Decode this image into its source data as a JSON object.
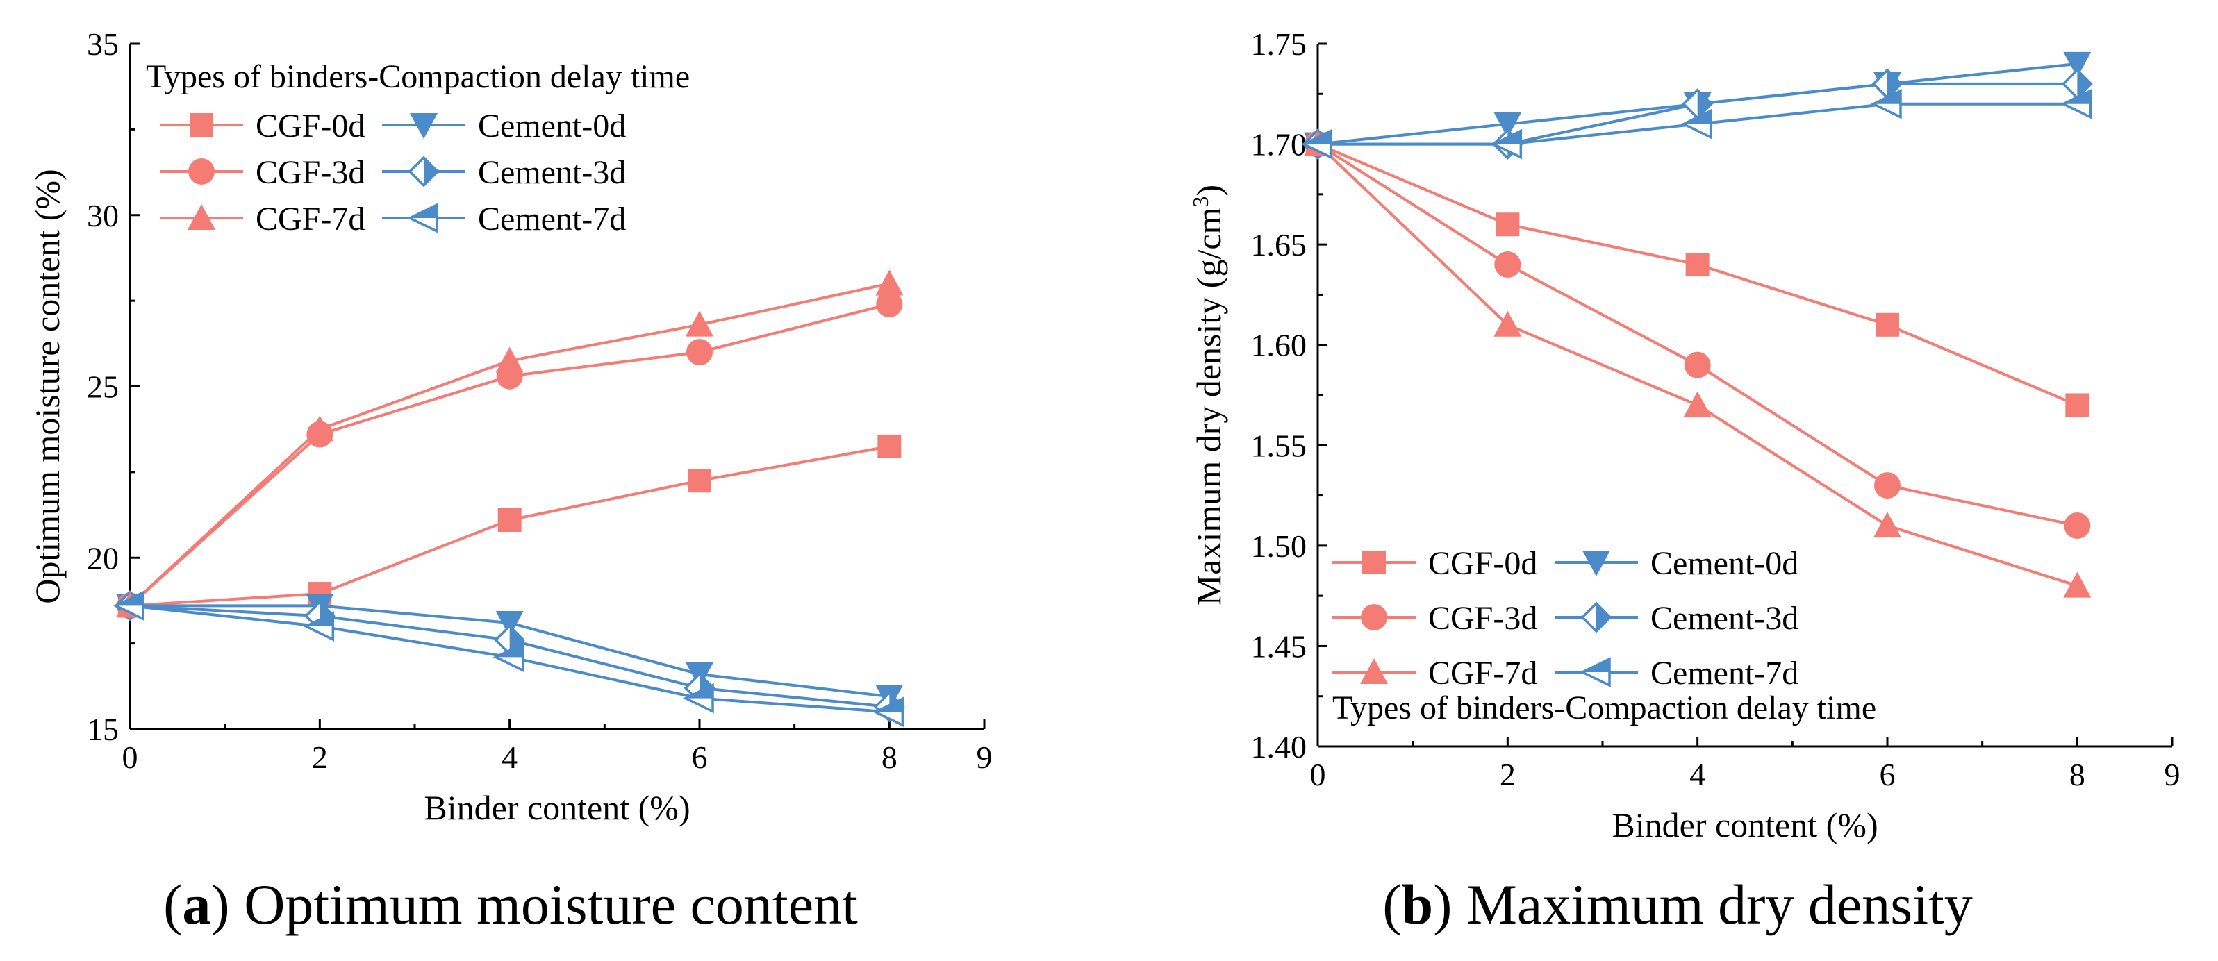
{
  "colors": {
    "cgf": "#F47C74",
    "cement": "#4C8BC9"
  },
  "captions": [
    {
      "letter": "a",
      "text": "Optimum moisture content"
    },
    {
      "letter": "b",
      "text": "Maximum dry density"
    }
  ],
  "chart_data": [
    {
      "type": "line",
      "title": "",
      "xlabel": "Binder content (%)",
      "ylabel": "Optimum moisture content (%)",
      "xlim": [
        0,
        9
      ],
      "ylim": [
        15,
        35
      ],
      "xticks": [
        0,
        2,
        4,
        6,
        8,
        9
      ],
      "yticks": [
        15,
        20,
        25,
        30,
        35
      ],
      "x": [
        0,
        2,
        4,
        6,
        8
      ],
      "legend_title": "Types of binders-Compaction delay time",
      "legend_position": "top-left",
      "series": [
        {
          "name": "CGF-0d",
          "color": "cgf",
          "marker": "square",
          "values": [
            18.6,
            18.95,
            21.1,
            22.25,
            23.25
          ]
        },
        {
          "name": "Cement-0d",
          "color": "cement",
          "marker": "triangle-down",
          "values": [
            18.6,
            18.6,
            18.1,
            16.6,
            15.95
          ]
        },
        {
          "name": "CGF-3d",
          "color": "cgf",
          "marker": "circle",
          "values": [
            18.6,
            23.6,
            25.3,
            26.0,
            27.4
          ]
        },
        {
          "name": "Cement-3d",
          "color": "cement",
          "marker": "diamond-half",
          "values": [
            18.6,
            18.3,
            17.6,
            16.2,
            15.65
          ]
        },
        {
          "name": "CGF-7d",
          "color": "cgf",
          "marker": "triangle-up",
          "values": [
            18.6,
            23.75,
            25.75,
            26.8,
            28.0
          ]
        },
        {
          "name": "Cement-7d",
          "color": "cement",
          "marker": "triangle-left-half",
          "values": [
            18.6,
            18.0,
            17.1,
            15.9,
            15.5
          ]
        }
      ]
    },
    {
      "type": "line",
      "title": "",
      "xlabel": "Binder content (%)",
      "ylabel": "Maximum dry density (g/cm³)",
      "ylabel_main": "Maximum dry density (g/cm",
      "ylabel_sup": "3",
      "ylabel_end": ")",
      "xlim": [
        0,
        9
      ],
      "ylim": [
        1.4,
        1.75
      ],
      "xticks": [
        0,
        2,
        4,
        6,
        8,
        9
      ],
      "yticks": [
        "1.40",
        "1.45",
        "1.50",
        "1.55",
        "1.60",
        "1.65",
        "1.70",
        "1.75"
      ],
      "x": [
        0,
        2,
        4,
        6,
        8
      ],
      "legend_title": "Types of binders-Compaction delay time",
      "legend_position": "bottom-left",
      "series": [
        {
          "name": "CGF-0d",
          "color": "cgf",
          "marker": "square",
          "values": [
            1.7,
            1.66,
            1.64,
            1.61,
            1.57
          ]
        },
        {
          "name": "Cement-0d",
          "color": "cement",
          "marker": "triangle-down",
          "values": [
            1.7,
            1.71,
            1.72,
            1.73,
            1.74
          ]
        },
        {
          "name": "CGF-3d",
          "color": "cgf",
          "marker": "circle",
          "values": [
            1.7,
            1.64,
            1.59,
            1.53,
            1.51
          ]
        },
        {
          "name": "Cement-3d",
          "color": "cement",
          "marker": "diamond-half",
          "values": [
            1.7,
            1.7,
            1.72,
            1.73,
            1.73
          ]
        },
        {
          "name": "CGF-7d",
          "color": "cgf",
          "marker": "triangle-up",
          "values": [
            1.7,
            1.61,
            1.57,
            1.51,
            1.48
          ]
        },
        {
          "name": "Cement-7d",
          "color": "cement",
          "marker": "triangle-left-half",
          "values": [
            1.7,
            1.7,
            1.71,
            1.72,
            1.72
          ]
        }
      ]
    }
  ]
}
